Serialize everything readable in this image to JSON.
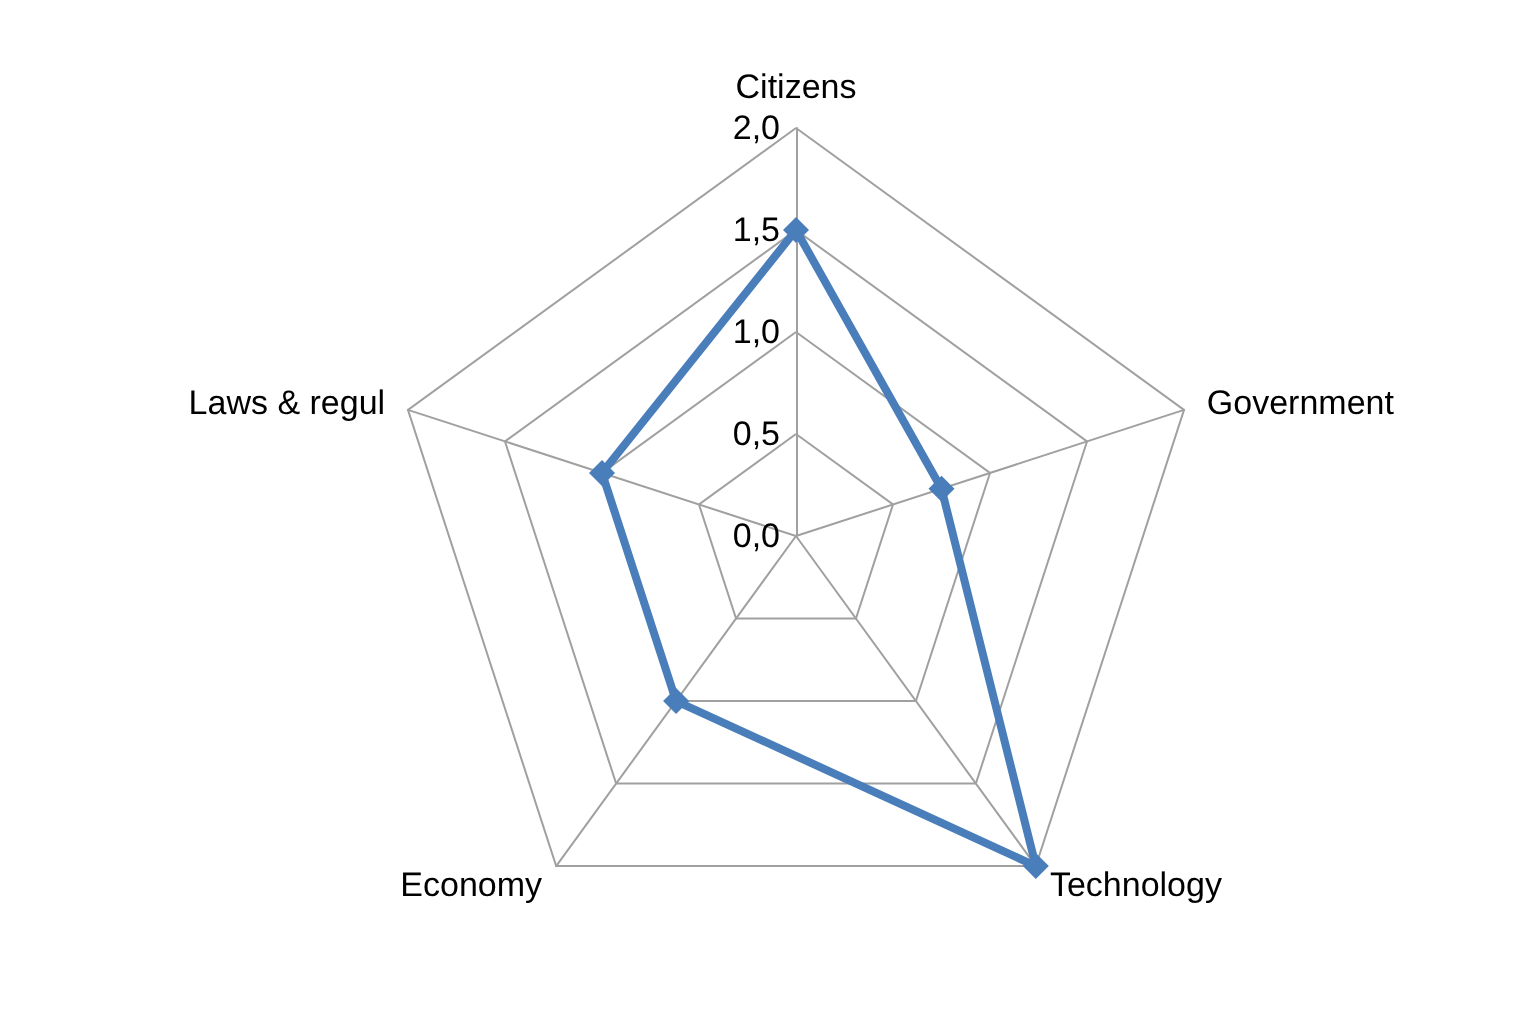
{
  "chart_data": {
    "type": "radar",
    "categories": [
      "Citizens",
      "Government",
      "Technology",
      "Economy",
      "Laws & regul"
    ],
    "series": [
      {
        "color": "#4a7ebb",
        "values": [
          1.5,
          0.75,
          2.0,
          1.0,
          1.0
        ]
      }
    ],
    "ylim": [
      0,
      2
    ],
    "yticks": [
      {
        "value": 0,
        "label": "0,0"
      },
      {
        "value": 0.5,
        "label": "0,5"
      },
      {
        "value": 1,
        "label": "1,0"
      },
      {
        "value": 1.5,
        "label": "1,5"
      },
      {
        "value": 2,
        "label": "2,0"
      }
    ],
    "marker": "diamond",
    "grid": true
  }
}
